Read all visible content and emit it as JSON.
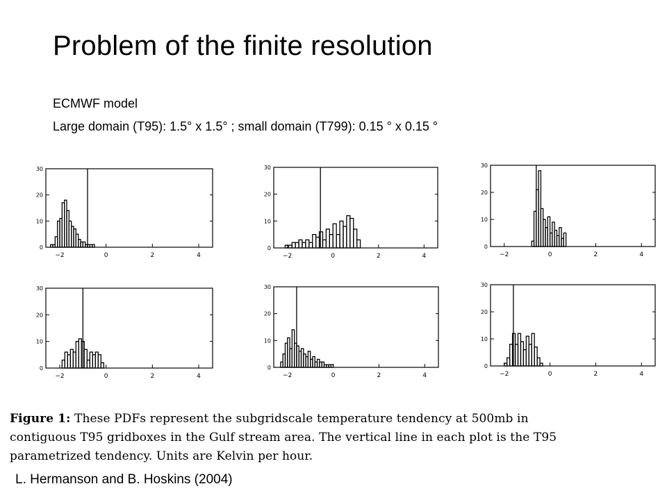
{
  "slide": {
    "title": "Problem of the finite resolution",
    "line1": "ECMWF model",
    "line2": "Large domain (T95): 1.5° x 1.5° ; small domain (T799): 0.15 ° x  0.15 °",
    "caption_label": "Figure 1:",
    "caption_text": "These PDFs represent the subgridscale temperature tendency at 500mb in contiguous T95 gridboxes in the Gulf stream area. The vertical line in each plot is the T95 parametrized tendency. Units are Kelvin per hour.",
    "credit": "L. Hermanson and B. Hoskins (2004)"
  },
  "colors": {
    "ink": "#000000",
    "background": "#ffffff"
  },
  "chart_data": [
    {
      "type": "histogram",
      "xlim": [
        -2.6,
        4.6
      ],
      "ylim": [
        0,
        30
      ],
      "xticks": [
        -2,
        0,
        2,
        4
      ],
      "yticks": [
        0,
        10,
        20,
        30
      ],
      "grid": false,
      "vline": -0.8,
      "bin_width": 0.1,
      "x_start": -2.4,
      "values": [
        1,
        1,
        4,
        10,
        11,
        17,
        18,
        14,
        10,
        8,
        7,
        5,
        3,
        2,
        2,
        1,
        1,
        1,
        1,
        0
      ]
    },
    {
      "type": "histogram",
      "xlim": [
        -2.6,
        4.6
      ],
      "ylim": [
        0,
        30
      ],
      "xticks": [
        -2,
        0,
        2,
        4
      ],
      "yticks": [
        0,
        10,
        20,
        30
      ],
      "grid": false,
      "vline": -0.55,
      "bin_width": 0.15,
      "x_start": -2.1,
      "values": [
        1,
        1,
        2,
        2,
        3,
        2,
        3,
        2,
        5,
        4,
        6,
        3,
        7,
        5,
        9,
        5,
        10,
        8,
        12,
        11,
        7,
        3
      ]
    },
    {
      "type": "histogram",
      "xlim": [
        -2.6,
        4.6
      ],
      "ylim": [
        0,
        30
      ],
      "xticks": [
        -2,
        0,
        2,
        4
      ],
      "yticks": [
        0,
        10,
        20,
        30
      ],
      "grid": false,
      "vline": -0.6,
      "bin_width": 0.1,
      "x_start": -0.8,
      "values": [
        2,
        13,
        21,
        28,
        14,
        10,
        7,
        11,
        5,
        9,
        6,
        4,
        7,
        3,
        5
      ]
    },
    {
      "type": "histogram",
      "xlim": [
        -2.6,
        4.6
      ],
      "ylim": [
        0,
        30
      ],
      "xticks": [
        -2,
        0,
        2,
        4
      ],
      "yticks": [
        0,
        10,
        20,
        30
      ],
      "grid": false,
      "vline": -1.0,
      "bin_width": 0.12,
      "x_start": -1.9,
      "values": [
        3,
        6,
        5,
        7,
        6,
        10,
        11,
        10,
        7,
        3,
        6,
        5,
        6,
        5,
        2
      ]
    },
    {
      "type": "histogram",
      "xlim": [
        -2.6,
        4.6
      ],
      "ylim": [
        0,
        30
      ],
      "xticks": [
        -2,
        0,
        2,
        4
      ],
      "yticks": [
        0,
        10,
        20,
        30
      ],
      "grid": false,
      "vline": -1.6,
      "bin_width": 0.1,
      "x_start": -2.3,
      "values": [
        2,
        5,
        9,
        11,
        7,
        14,
        9,
        8,
        6,
        7,
        5,
        4,
        6,
        3,
        4,
        2,
        3,
        2,
        2,
        1,
        1,
        1,
        1
      ]
    },
    {
      "type": "histogram",
      "xlim": [
        -2.6,
        4.6
      ],
      "ylim": [
        0,
        30
      ],
      "xticks": [
        -2,
        0,
        2,
        4
      ],
      "yticks": [
        0,
        10,
        20,
        30
      ],
      "grid": false,
      "vline": -1.6,
      "bin_width": 0.12,
      "x_start": -2.0,
      "values": [
        1,
        3,
        8,
        12,
        8,
        12,
        9,
        6,
        11,
        8,
        12,
        7,
        3,
        1
      ]
    }
  ]
}
